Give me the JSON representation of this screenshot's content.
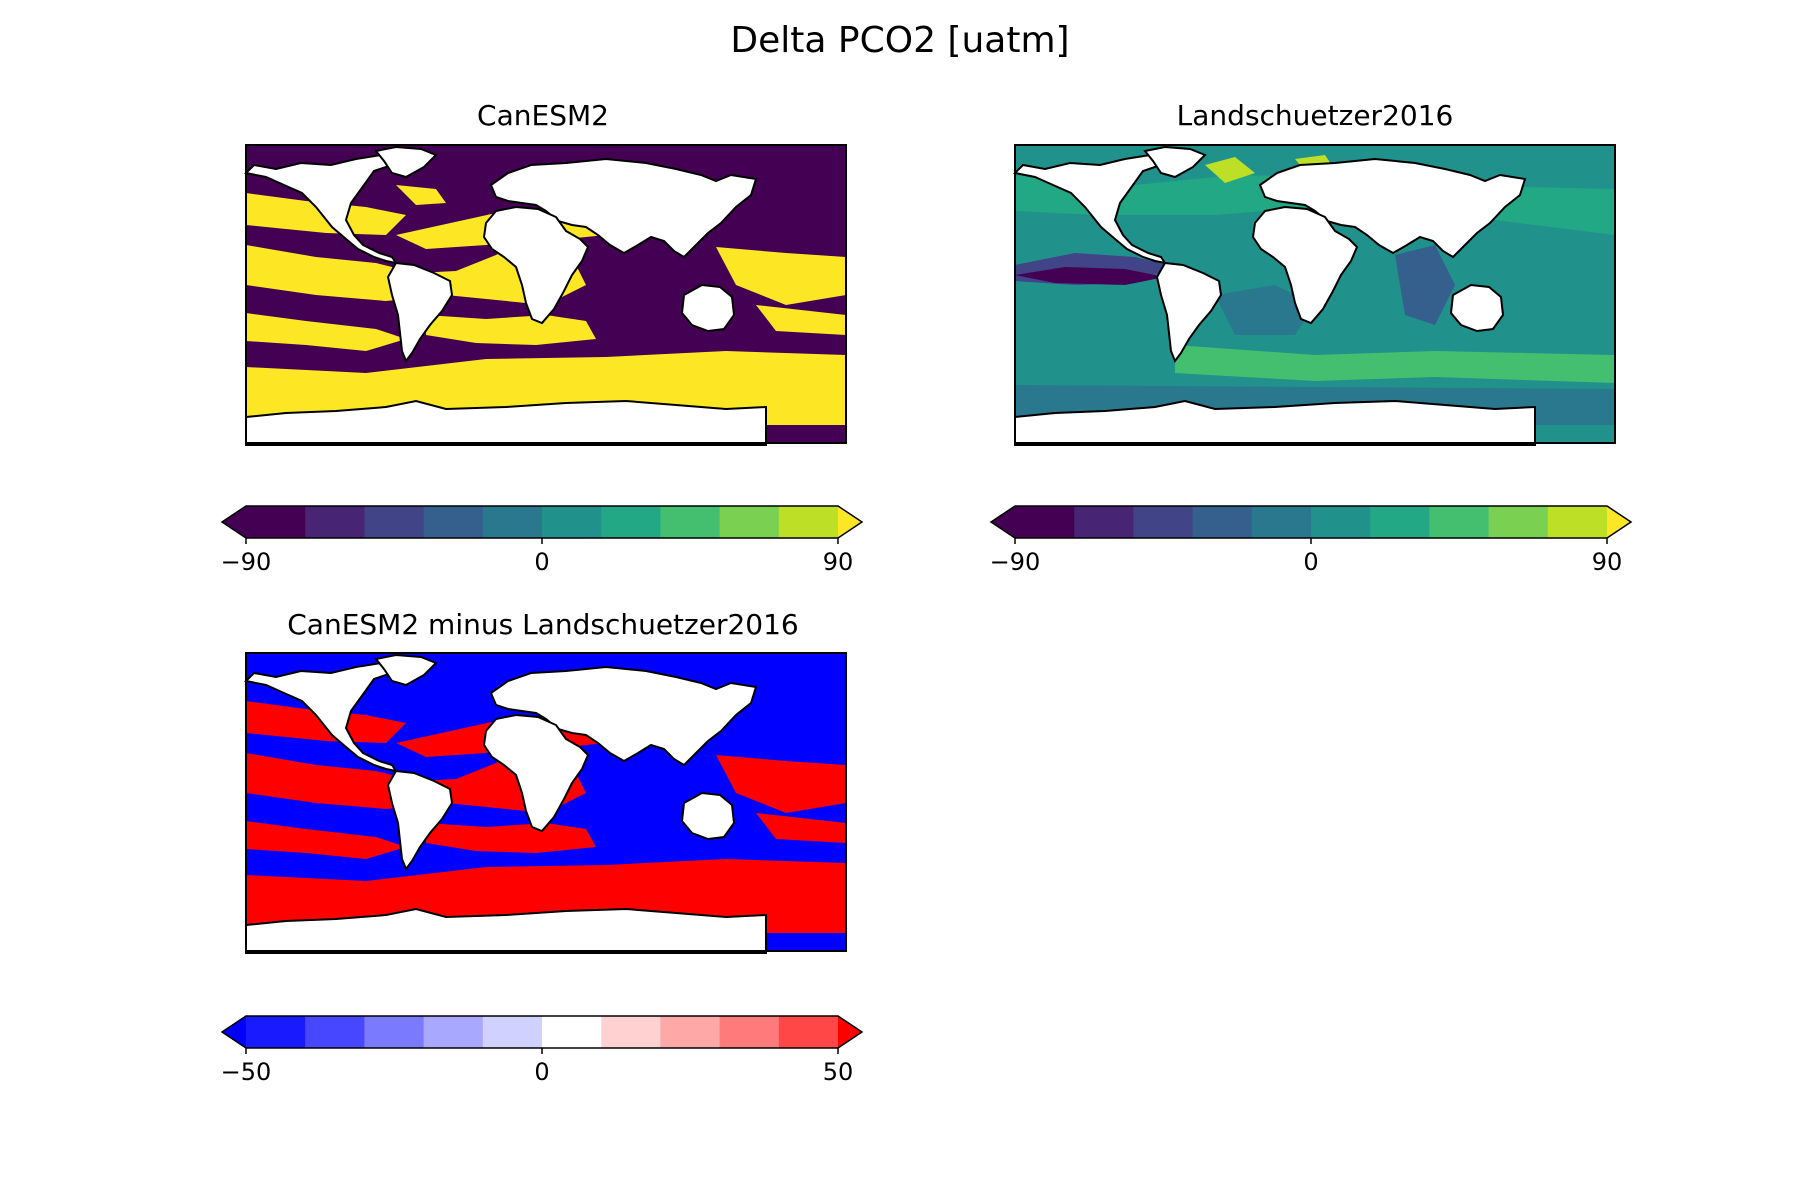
{
  "figure": {
    "title": "Delta PCO2 [uatm]"
  },
  "chart_data": [
    {
      "type": "heatmap",
      "title": "CanESM2",
      "colormap": "viridis",
      "colorbar": {
        "ticks": [
          "−90",
          "0",
          "90"
        ],
        "range": [
          -90,
          90
        ],
        "levels": 10,
        "extend": "both"
      }
    },
    {
      "type": "heatmap",
      "title": "Landschuetzer2016",
      "colormap": "viridis",
      "colorbar": {
        "ticks": [
          "−90",
          "0",
          "90"
        ],
        "range": [
          -90,
          90
        ],
        "levels": 10,
        "extend": "both"
      }
    },
    {
      "type": "heatmap",
      "title": "CanESM2 minus Landschuetzer2016",
      "colormap": "bwr",
      "colorbar": {
        "ticks": [
          "−50",
          "0",
          "50"
        ],
        "range": [
          -50,
          50
        ],
        "levels": 10,
        "extend": "both"
      }
    }
  ],
  "colors": {
    "viridis": [
      "#440154",
      "#482475",
      "#414487",
      "#355f8d",
      "#2a788e",
      "#21918c",
      "#22a884",
      "#44bf70",
      "#7ad151",
      "#bddf26",
      "#fde725"
    ],
    "bwr": [
      "#0000ff",
      "#1a1aff",
      "#4747ff",
      "#7a7aff",
      "#a8a8ff",
      "#d1d1ff",
      "#ffffff",
      "#ffd1d1",
      "#ffa8a8",
      "#ff7a7a",
      "#ff4747",
      "#ff1a1a",
      "#ff0000"
    ]
  }
}
